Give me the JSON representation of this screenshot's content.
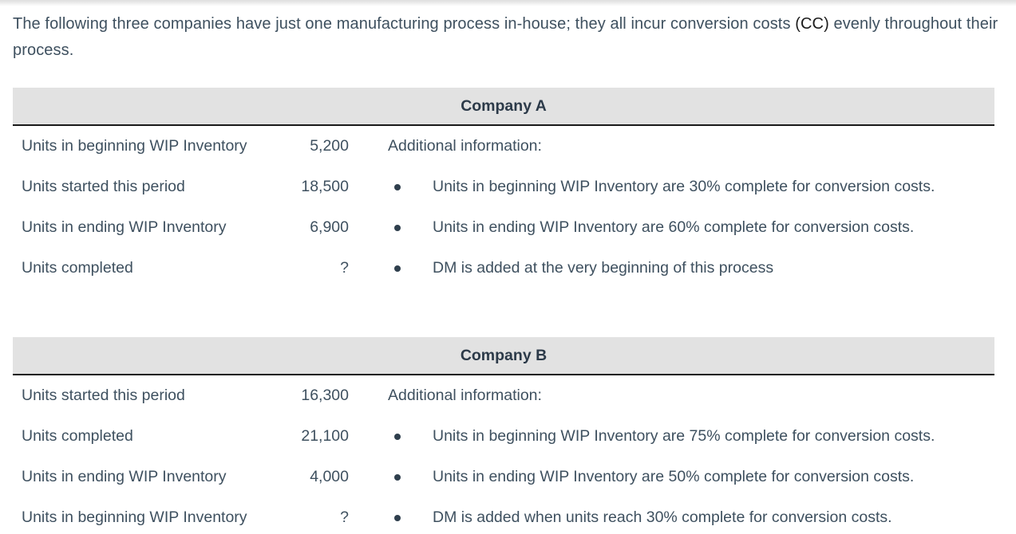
{
  "intro": {
    "text_before_cc": "The following three companies have just one manufacturing process in-house; they all incur conversion costs ",
    "cc": "(CC)",
    "text_after_cc": " evenly throughout their process."
  },
  "colors": {
    "body_text": "#3e505f",
    "cc_text": "#1b1b1b",
    "band_background": "#e2e2e2",
    "band_text": "#2c3a49",
    "divider_line": "#1a1a1a",
    "bullet": "#2f3f4d"
  },
  "companies": [
    {
      "title": "Company A",
      "rows": [
        {
          "label": "Units in beginning WIP Inventory",
          "value": "5,200",
          "info": "Additional information:",
          "bullet": false
        },
        {
          "label": "Units started this period",
          "value": "18,500",
          "info": "Units in beginning WIP Inventory are 30% complete for conversion costs.",
          "bullet": true
        },
        {
          "label": "Units in ending WIP Inventory",
          "value": "6,900",
          "info": "Units in ending WIP Inventory are 60% complete for conversion costs.",
          "bullet": true
        },
        {
          "label": "Units completed",
          "value": "?",
          "info": "DM is added at the very beginning of this process",
          "bullet": true
        }
      ]
    },
    {
      "title": "Company B",
      "rows": [
        {
          "label": "Units started this period",
          "value": "16,300",
          "info": "Additional information:",
          "bullet": false
        },
        {
          "label": "Units completed",
          "value": "21,100",
          "info": "Units in beginning WIP Inventory are 75% complete for conversion costs.",
          "bullet": true
        },
        {
          "label": "Units in ending WIP Inventory",
          "value": "4,000",
          "info": "Units in ending WIP Inventory are 50% complete for conversion costs.",
          "bullet": true
        },
        {
          "label": "Units in beginning WIP Inventory",
          "value": "?",
          "info": "DM is added when units reach 30% complete for conversion costs.",
          "bullet": true
        }
      ]
    }
  ]
}
